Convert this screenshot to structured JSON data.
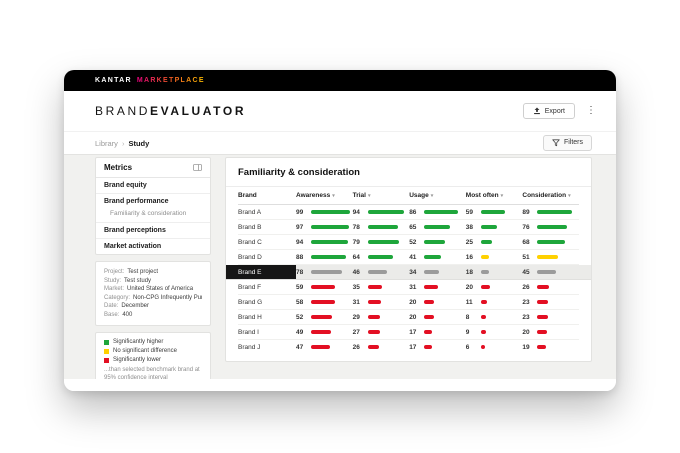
{
  "logo": {
    "kantar": "KANTAR",
    "marketplace": "MARKETPLACE",
    "marketplace_colors": [
      "#e6007d",
      "#f05a22",
      "#ffc300"
    ]
  },
  "header": {
    "brand": "BRAND",
    "product": "EVALUATOR",
    "export_label": "Export"
  },
  "icons": {
    "kebab": "⋮",
    "breadcrumb_sep": "›",
    "sort_caret": "▾"
  },
  "breadcrumb": {
    "library": "Library",
    "current": "Study"
  },
  "filters_label": "Filters",
  "sidebar": {
    "title": "Metrics",
    "items": [
      {
        "label": "Brand equity",
        "sub": false,
        "selected": false
      },
      {
        "label": "Brand performance",
        "sub": false,
        "selected": false
      },
      {
        "label": "Familiarity & consideration",
        "sub": true,
        "selected": true
      },
      {
        "label": "Brand perceptions",
        "sub": false,
        "selected": false
      },
      {
        "label": "Market activation",
        "sub": false,
        "selected": false
      }
    ]
  },
  "project_info": {
    "rows": [
      {
        "label": "Project:",
        "value": "Test project"
      },
      {
        "label": "Study:",
        "value": "Test study"
      },
      {
        "label": "Market:",
        "value": "United States of America"
      },
      {
        "label": "Category:",
        "value": "Non-CPG Infrequently Purch..."
      },
      {
        "label": "Date:",
        "value": "December"
      },
      {
        "label": "Base:",
        "value": "400"
      }
    ]
  },
  "legend": {
    "items": [
      {
        "key": "higher",
        "label": "Significantly higher"
      },
      {
        "key": "no_difference",
        "label": "No significant difference"
      },
      {
        "key": "lower",
        "label": "Significantly lower"
      }
    ],
    "note": "...than selected benchmark brand at 95% confidence interval"
  },
  "main": {
    "title": "Familiarity & consideration"
  },
  "chart_data": {
    "type": "table",
    "title": "Familiarity & consideration",
    "columns": [
      "Brand",
      "Awareness",
      "Trial",
      "Usage",
      "Most often",
      "Consideration"
    ],
    "benchmark_brand": "Brand E",
    "significance_colors": {
      "higher": "#1ea63b",
      "no_difference": "#ffd100",
      "lower": "#e30f23",
      "benchmark": "#9b9b9b"
    },
    "rows": [
      {
        "brand": "Brand A",
        "values": [
          99,
          94,
          86,
          59,
          89
        ],
        "colors": [
          "higher",
          "higher",
          "higher",
          "higher",
          "higher"
        ],
        "benchmark": false
      },
      {
        "brand": "Brand B",
        "values": [
          97,
          78,
          65,
          38,
          76
        ],
        "colors": [
          "higher",
          "higher",
          "higher",
          "higher",
          "higher"
        ],
        "benchmark": false
      },
      {
        "brand": "Brand C",
        "values": [
          94,
          79,
          52,
          25,
          68
        ],
        "colors": [
          "higher",
          "higher",
          "higher",
          "higher",
          "higher"
        ],
        "benchmark": false
      },
      {
        "brand": "Brand D",
        "values": [
          88,
          64,
          41,
          16,
          51
        ],
        "colors": [
          "higher",
          "higher",
          "higher",
          "no_difference",
          "no_difference"
        ],
        "benchmark": false
      },
      {
        "brand": "Brand E",
        "values": [
          78,
          46,
          34,
          18,
          45
        ],
        "colors": [
          "benchmark",
          "benchmark",
          "benchmark",
          "benchmark",
          "benchmark"
        ],
        "benchmark": true
      },
      {
        "brand": "Brand F",
        "values": [
          59,
          35,
          31,
          20,
          26
        ],
        "colors": [
          "lower",
          "lower",
          "lower",
          "lower",
          "lower"
        ],
        "benchmark": false
      },
      {
        "brand": "Brand G",
        "values": [
          58,
          31,
          20,
          11,
          23
        ],
        "colors": [
          "lower",
          "lower",
          "lower",
          "lower",
          "lower"
        ],
        "benchmark": false
      },
      {
        "brand": "Brand H",
        "values": [
          52,
          29,
          20,
          8,
          23
        ],
        "colors": [
          "lower",
          "lower",
          "lower",
          "lower",
          "lower"
        ],
        "benchmark": false
      },
      {
        "brand": "Brand I",
        "values": [
          49,
          27,
          17,
          9,
          20
        ],
        "colors": [
          "lower",
          "lower",
          "lower",
          "lower",
          "lower"
        ],
        "benchmark": false
      },
      {
        "brand": "Brand J",
        "values": [
          47,
          26,
          17,
          6,
          19
        ],
        "colors": [
          "lower",
          "lower",
          "lower",
          "lower",
          "lower"
        ],
        "benchmark": false
      }
    ]
  }
}
